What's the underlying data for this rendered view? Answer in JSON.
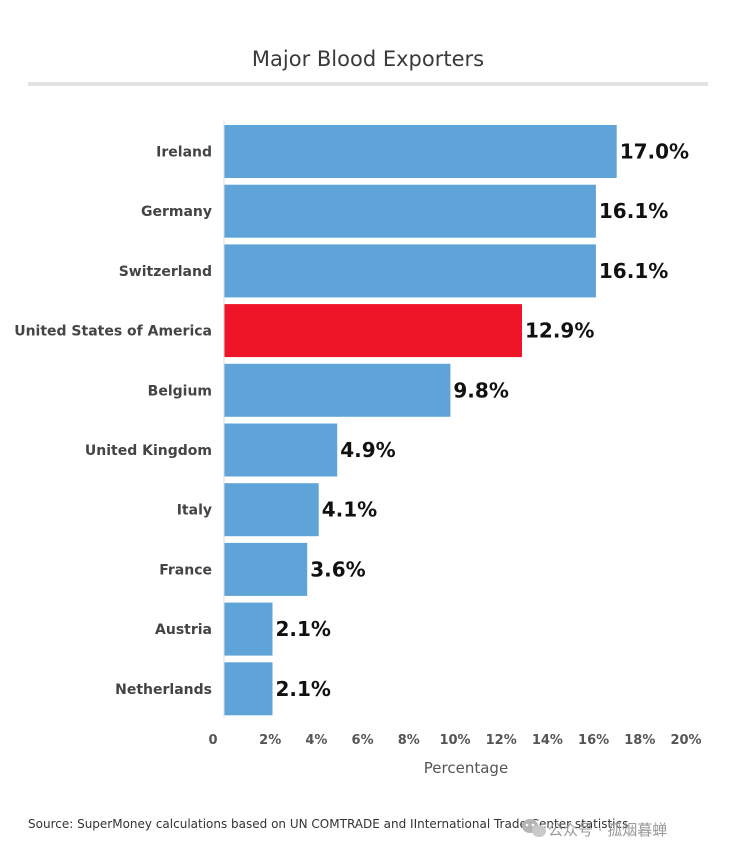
{
  "chart_data": {
    "type": "bar",
    "orientation": "horizontal",
    "title": "Major Blood Exporters",
    "xlabel": "Percentage",
    "ylabel": "",
    "xlim": [
      0,
      20
    ],
    "categories": [
      "Ireland",
      "Germany",
      "Switzerland",
      "United States of America",
      "Belgium",
      "United Kingdom",
      "Italy",
      "France",
      "Austria",
      "Netherlands"
    ],
    "values": [
      17.0,
      16.1,
      16.1,
      12.9,
      9.8,
      4.9,
      4.1,
      3.6,
      2.1,
      2.1
    ],
    "value_labels": [
      "17.0%",
      "16.1%",
      "16.1%",
      "12.9%",
      "9.8%",
      "4.9%",
      "4.1%",
      "3.6%",
      "2.1%",
      "2.1%"
    ],
    "highlight_category": "United States of America",
    "tick_values": [
      0,
      2,
      4,
      6,
      8,
      10,
      12,
      14,
      16,
      18,
      20
    ],
    "tick_labels": [
      "0",
      "2%",
      "4%",
      "6%",
      "8%",
      "10%",
      "12%",
      "14%",
      "16%",
      "18%",
      "20%"
    ],
    "grid": false,
    "legend": "none"
  },
  "colors": {
    "bar": "#5fa4d8",
    "highlight": "#f01428",
    "title_rule": "#e3e3e3",
    "axis": "#dcdcdc"
  },
  "source": "Source:  SuperMoney calculations based on UN COMTRADE and IInternational Trade Center statistics",
  "watermark": {
    "icon": "wechat-icon",
    "text": "公众号 · 孤烟暮蝉"
  }
}
